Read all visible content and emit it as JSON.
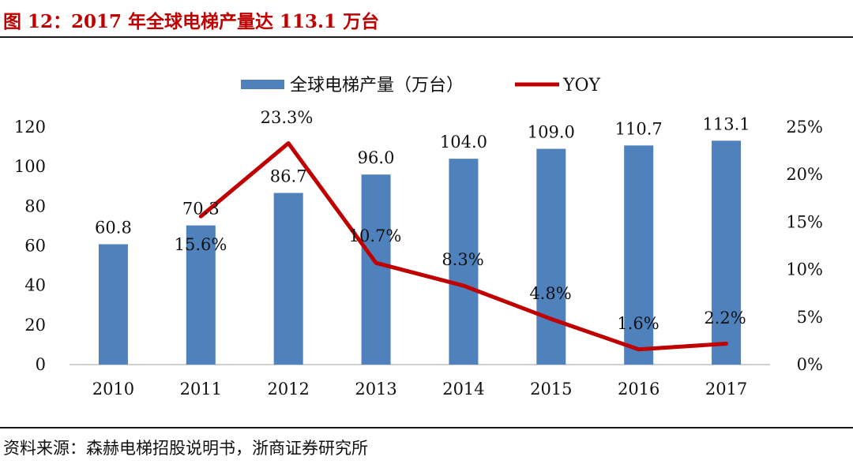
{
  "title": "图 12：2017 年全球电梯产量达 113.1 万台",
  "source": "资料来源：森赫电梯招股说明书，浙商证券研究所",
  "chart_data": {
    "type": "bar",
    "categories": [
      "2010",
      "2011",
      "2012",
      "2013",
      "2014",
      "2015",
      "2016",
      "2017"
    ],
    "series": [
      {
        "name": "全球电梯产量（万台）",
        "type": "bar",
        "axis": "left",
        "color": "#4f81bd",
        "values": [
          60.8,
          70.3,
          86.7,
          96.0,
          104.0,
          109.0,
          110.7,
          113.1
        ],
        "labels": [
          "60.8",
          "70.3",
          "86.7",
          "96.0",
          "104.0",
          "109.0",
          "110.7",
          "113.1"
        ]
      },
      {
        "name": "YOY",
        "type": "line",
        "axis": "right",
        "color": "#c00000",
        "values": [
          null,
          15.6,
          23.3,
          10.7,
          8.3,
          4.8,
          1.6,
          2.2
        ],
        "labels": [
          "",
          "15.6%",
          "23.3%",
          "10.7%",
          "8.3%",
          "4.8%",
          "1.6%",
          "2.2%"
        ]
      }
    ],
    "y_left": {
      "ylim": [
        0,
        120
      ],
      "ticks": [
        "0",
        "20",
        "40",
        "60",
        "80",
        "100",
        "120"
      ]
    },
    "y_right": {
      "ylim": [
        0,
        25
      ],
      "ticks": [
        "0%",
        "5%",
        "10%",
        "15%",
        "20%",
        "25%"
      ]
    },
    "grid": false,
    "legend": "top-center"
  }
}
